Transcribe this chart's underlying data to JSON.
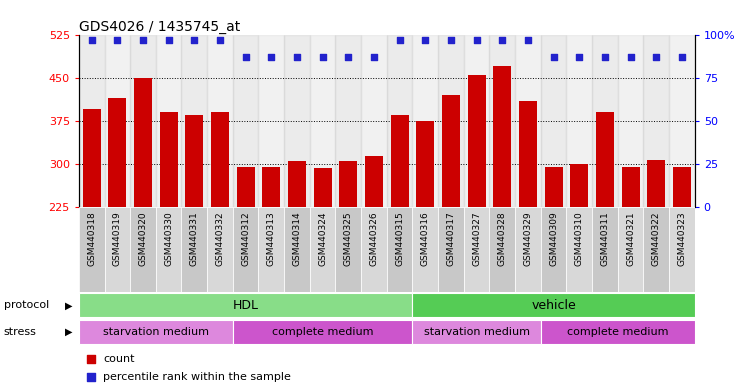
{
  "title": "GDS4026 / 1435745_at",
  "samples": [
    "GSM440318",
    "GSM440319",
    "GSM440320",
    "GSM440330",
    "GSM440331",
    "GSM440332",
    "GSM440312",
    "GSM440313",
    "GSM440314",
    "GSM440324",
    "GSM440325",
    "GSM440326",
    "GSM440315",
    "GSM440316",
    "GSM440317",
    "GSM440327",
    "GSM440328",
    "GSM440329",
    "GSM440309",
    "GSM440310",
    "GSM440311",
    "GSM440321",
    "GSM440322",
    "GSM440323"
  ],
  "counts": [
    395,
    415,
    450,
    390,
    385,
    390,
    295,
    295,
    305,
    293,
    305,
    315,
    385,
    375,
    420,
    455,
    470,
    410,
    295,
    300,
    390,
    295,
    308,
    295
  ],
  "percentiles": [
    97,
    97,
    97,
    97,
    97,
    97,
    87,
    87,
    87,
    87,
    87,
    87,
    97,
    97,
    97,
    97,
    97,
    97,
    87,
    87,
    87,
    87,
    87,
    87
  ],
  "bar_color": "#cc0000",
  "dot_color": "#2222cc",
  "ylim_left": [
    225,
    525
  ],
  "ylim_right": [
    0,
    100
  ],
  "yticks_left": [
    225,
    300,
    375,
    450,
    525
  ],
  "yticks_right": [
    0,
    25,
    50,
    75,
    100
  ],
  "protocol_groups": [
    {
      "label": "HDL",
      "start": 0,
      "end": 13,
      "color": "#88dd88"
    },
    {
      "label": "vehicle",
      "start": 13,
      "end": 24,
      "color": "#55cc55"
    }
  ],
  "stress_groups": [
    {
      "label": "starvation medium",
      "start": 0,
      "end": 6,
      "color": "#dd88dd"
    },
    {
      "label": "complete medium",
      "start": 6,
      "end": 13,
      "color": "#cc55cc"
    },
    {
      "label": "starvation medium",
      "start": 13,
      "end": 18,
      "color": "#dd88dd"
    },
    {
      "label": "complete medium",
      "start": 18,
      "end": 24,
      "color": "#cc55cc"
    }
  ],
  "legend_count_color": "#cc0000",
  "legend_pct_color": "#2222cc",
  "background_color": "#ffffff",
  "grid_color": "#000000",
  "col_colors": [
    "#c8c8c8",
    "#d8d8d8"
  ]
}
